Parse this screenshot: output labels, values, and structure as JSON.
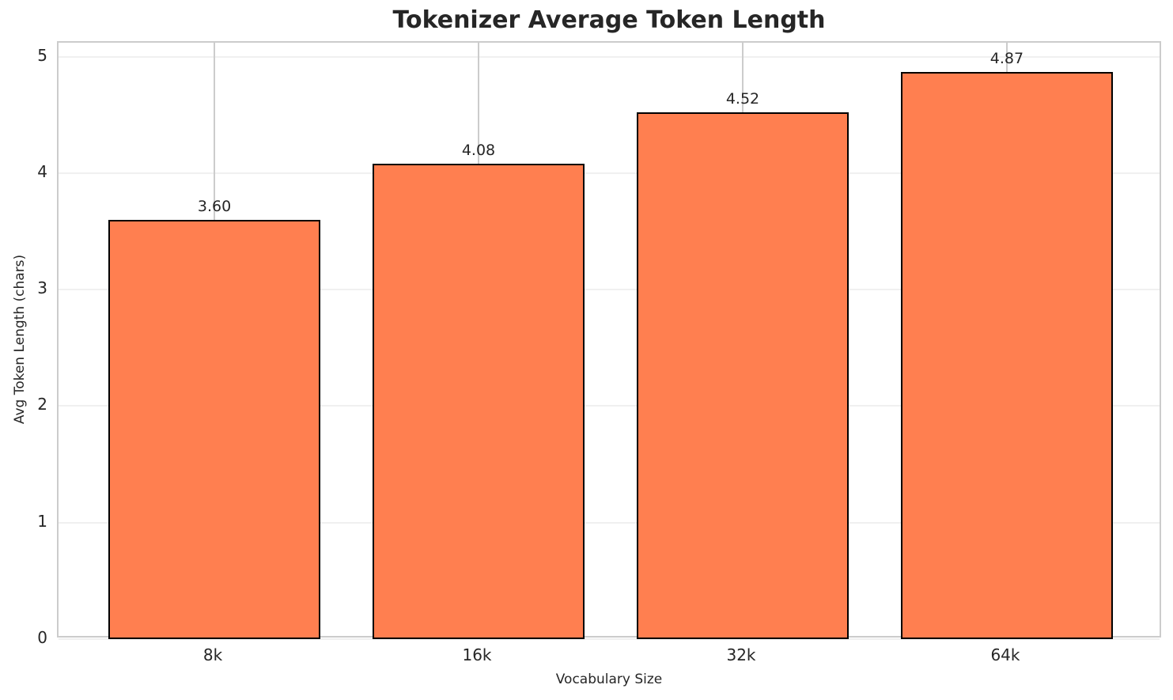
{
  "chart_data": {
    "type": "bar",
    "title": "Tokenizer Average Token Length",
    "xlabel": "Vocabulary Size",
    "ylabel": "Avg Token Length (chars)",
    "categories": [
      "8k",
      "16k",
      "32k",
      "64k"
    ],
    "values": [
      3.6,
      4.08,
      4.52,
      4.87
    ],
    "value_labels": [
      "3.60",
      "4.08",
      "4.52",
      "4.87"
    ],
    "yticks": [
      0,
      1,
      2,
      3,
      4,
      5
    ],
    "ytick_labels": [
      "0",
      "1",
      "2",
      "3",
      "4",
      "5"
    ],
    "ylim": [
      0,
      5.12
    ],
    "bar_width_fraction": 0.8,
    "legend": null,
    "grid": true,
    "colors": {
      "bar_fill": "#FF7F50",
      "bar_edge": "#000000",
      "grid_horizontal": "#F0F0F0",
      "grid_vertical": "#CCCCCC",
      "spine": "#CCCCCC",
      "text": "#262626",
      "background": "#FFFFFF"
    }
  }
}
